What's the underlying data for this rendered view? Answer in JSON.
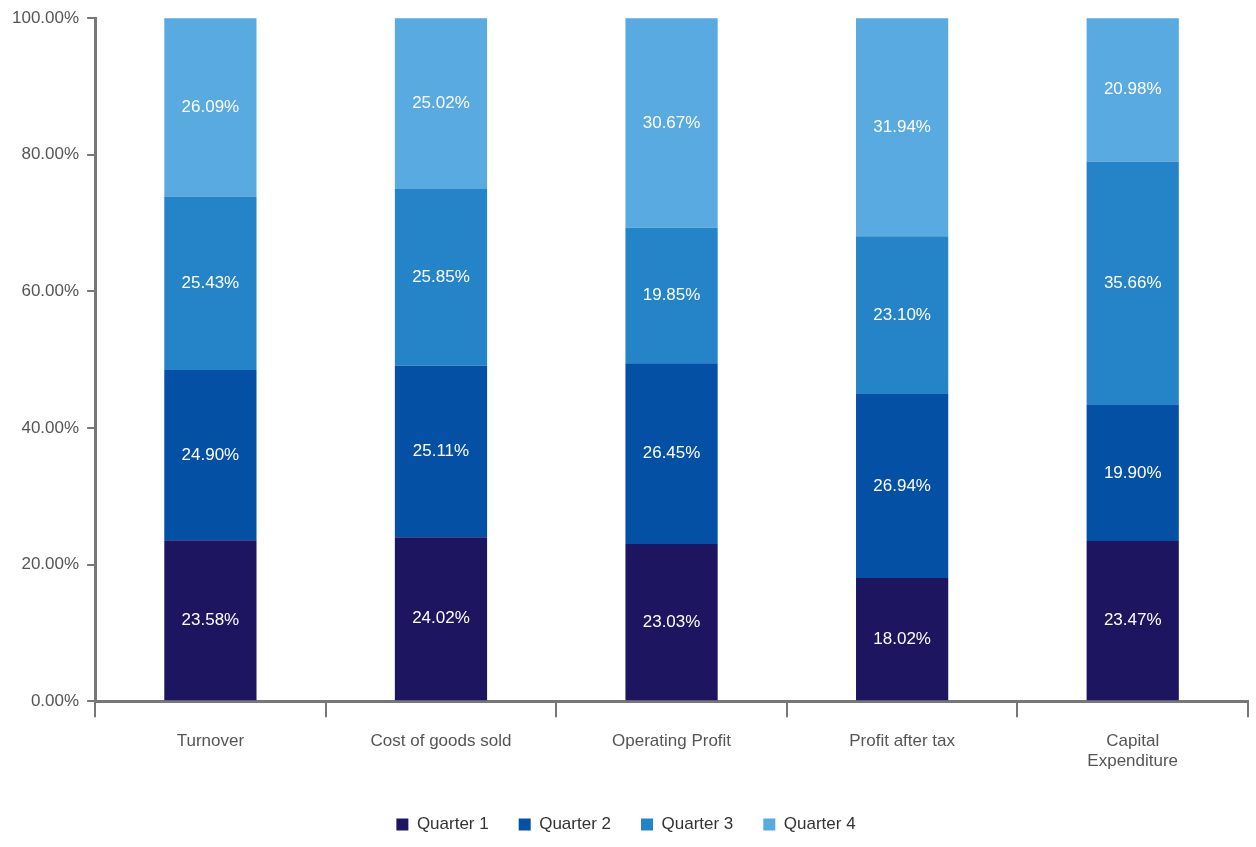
{
  "chart_data": {
    "type": "bar",
    "stacked": true,
    "categories": [
      "Turnover",
      "Cost of goods sold",
      "Operating Profit",
      "Profit after tax",
      "Capital Expenditure"
    ],
    "series": [
      {
        "name": "Quarter 1",
        "color": "#1e1560",
        "values": [
          23.58,
          24.02,
          23.03,
          18.02,
          23.47
        ],
        "value_labels": [
          "23.58%",
          "24.02%",
          "23.03%",
          "18.02%",
          "23.47%"
        ]
      },
      {
        "name": "Quarter 2",
        "color": "#0450a4",
        "values": [
          24.9,
          25.11,
          26.45,
          26.94,
          19.9
        ],
        "value_labels": [
          "24.90%",
          "25.11%",
          "26.45%",
          "26.94%",
          "19.90%"
        ]
      },
      {
        "name": "Quarter 3",
        "color": "#2584c8",
        "values": [
          25.43,
          25.85,
          19.85,
          23.1,
          35.66
        ],
        "value_labels": [
          "25.43%",
          "25.85%",
          "19.85%",
          "23.10%",
          "35.66%"
        ]
      },
      {
        "name": "Quarter 4",
        "color": "#58aae0",
        "values": [
          26.09,
          25.02,
          30.67,
          31.94,
          20.98
        ],
        "value_labels": [
          "26.09%",
          "25.02%",
          "30.67%",
          "31.94%",
          "20.98%"
        ]
      }
    ],
    "ylim": [
      0,
      100
    ],
    "yticks": [
      {
        "value": 0,
        "label": "0.00%"
      },
      {
        "value": 20,
        "label": "20.00%"
      },
      {
        "value": 40,
        "label": "40.00%"
      },
      {
        "value": 60,
        "label": "60.00%"
      },
      {
        "value": 80,
        "label": "80.00%"
      },
      {
        "value": 100,
        "label": "100.00%"
      }
    ],
    "grid": false,
    "legend": "bottom"
  }
}
